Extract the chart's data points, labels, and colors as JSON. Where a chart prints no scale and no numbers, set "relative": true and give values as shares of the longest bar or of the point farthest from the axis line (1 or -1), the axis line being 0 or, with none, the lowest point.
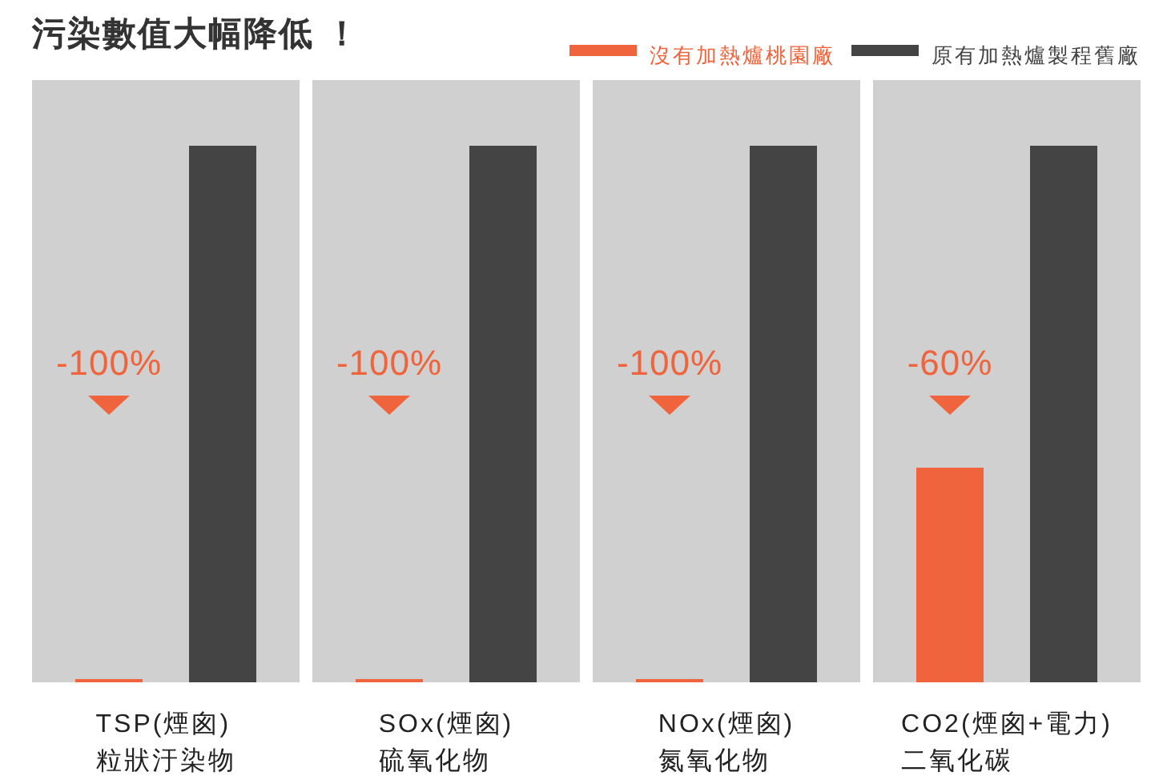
{
  "chart_data": {
    "type": "bar",
    "title": "污染數值大幅降低 ！",
    "categories": [
      "TSP(煙囪)\n粒狀汙染物",
      "SOx(煙囪)\n硫氧化物",
      "NOx(煙囪)\n氮氧化物",
      "CO2(煙囪+電力)\n二氧化碳"
    ],
    "series": [
      {
        "name": "沒有加熱爐桃園廠",
        "color": "#ef643c",
        "values": [
          0.006,
          0.006,
          0.006,
          0.4
        ]
      },
      {
        "name": "原有加熱爐製程舊廠",
        "color": "#444444",
        "values": [
          1,
          1,
          1,
          1
        ]
      }
    ],
    "bands": [
      {
        "axis": "x",
        "from": "TSP(煙囪)\n粒狀汙染物",
        "to": "TSP(煙囪)\n粒狀汙染物",
        "color": "#d0d0d0"
      },
      {
        "axis": "x",
        "from": "SOx(煙囪)\n硫氧化物",
        "to": "SOx(煙囪)\n硫氧化物",
        "color": "#d0d0d0"
      },
      {
        "axis": "x",
        "from": "NOx(煙囪)\n氮氧化物",
        "to": "NOx(煙囪)\n氮氧化物",
        "color": "#d0d0d0"
      },
      {
        "axis": "x",
        "from": "CO2(煙囪+電力)\n二氧化碳",
        "to": "CO2(煙囪+電力)\n二氧化碳",
        "color": "#d0d0d0"
      }
    ],
    "relative": true,
    "legend": "top right",
    "annotations": [
      "-100%",
      "-100%",
      "-100%",
      "-60%"
    ]
  }
}
